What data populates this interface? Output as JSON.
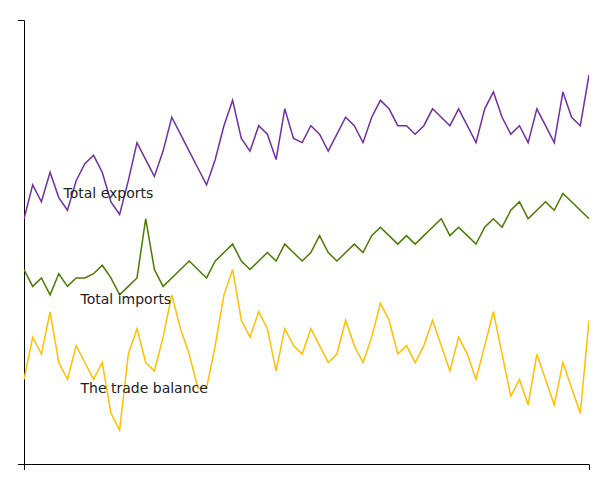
{
  "chart_data": {
    "type": "line",
    "x": [
      0,
      1,
      2,
      3,
      4,
      5,
      6,
      7,
      8,
      9,
      10,
      11,
      12,
      13,
      14,
      15,
      16,
      17,
      18,
      19,
      20,
      21,
      22,
      23,
      24,
      25,
      26,
      27,
      28,
      29,
      30,
      31,
      32,
      33,
      34,
      35,
      36,
      37,
      38,
      39,
      40,
      41,
      42,
      43,
      44,
      45,
      46,
      47,
      48,
      49,
      50,
      51,
      52,
      53,
      54,
      55,
      56,
      57,
      58,
      59,
      60,
      61,
      62,
      63,
      64,
      65
    ],
    "series": [
      {
        "name": "Total exports",
        "color": "#7030A0",
        "values": [
          68,
          76,
          72,
          79,
          73,
          70,
          77,
          81,
          83,
          79,
          72,
          69,
          77,
          86,
          82,
          78,
          84,
          92,
          88,
          84,
          80,
          76,
          82,
          90,
          96,
          87,
          84,
          90,
          88,
          82,
          94,
          87,
          86,
          90,
          88,
          84,
          88,
          92,
          90,
          86,
          92,
          96,
          94,
          90,
          90,
          88,
          90,
          94,
          92,
          90,
          94,
          90,
          86,
          94,
          98,
          92,
          88,
          90,
          86,
          94,
          90,
          86,
          98,
          92,
          90,
          102
        ]
      },
      {
        "name": "Total imports",
        "color": "#4A7C00",
        "values": [
          56,
          52,
          54,
          50,
          55,
          52,
          54,
          54,
          55,
          57,
          54,
          50,
          52,
          54,
          68,
          56,
          52,
          54,
          56,
          58,
          56,
          54,
          58,
          60,
          62,
          58,
          56,
          58,
          60,
          58,
          62,
          60,
          58,
          60,
          64,
          60,
          58,
          60,
          62,
          60,
          64,
          66,
          64,
          62,
          64,
          62,
          64,
          66,
          68,
          64,
          66,
          64,
          62,
          66,
          68,
          66,
          70,
          72,
          68,
          70,
          72,
          70,
          74,
          72,
          70,
          68
        ]
      },
      {
        "name": "The trade balance",
        "color": "#FFC000",
        "values": [
          30,
          40,
          36,
          46,
          34,
          30,
          38,
          34,
          30,
          34,
          22,
          18,
          36,
          42,
          34,
          32,
          40,
          50,
          42,
          36,
          28,
          28,
          38,
          50,
          56,
          44,
          40,
          46,
          42,
          32,
          42,
          38,
          36,
          42,
          38,
          34,
          36,
          44,
          38,
          34,
          40,
          48,
          44,
          36,
          38,
          34,
          38,
          44,
          38,
          32,
          40,
          36,
          30,
          38,
          46,
          36,
          26,
          30,
          24,
          36,
          30,
          24,
          34,
          28,
          22,
          44
        ]
      }
    ],
    "xlim": [
      0,
      65
    ],
    "ylim": [
      10,
      115
    ],
    "grid": false,
    "tick_labels": false
  }
}
